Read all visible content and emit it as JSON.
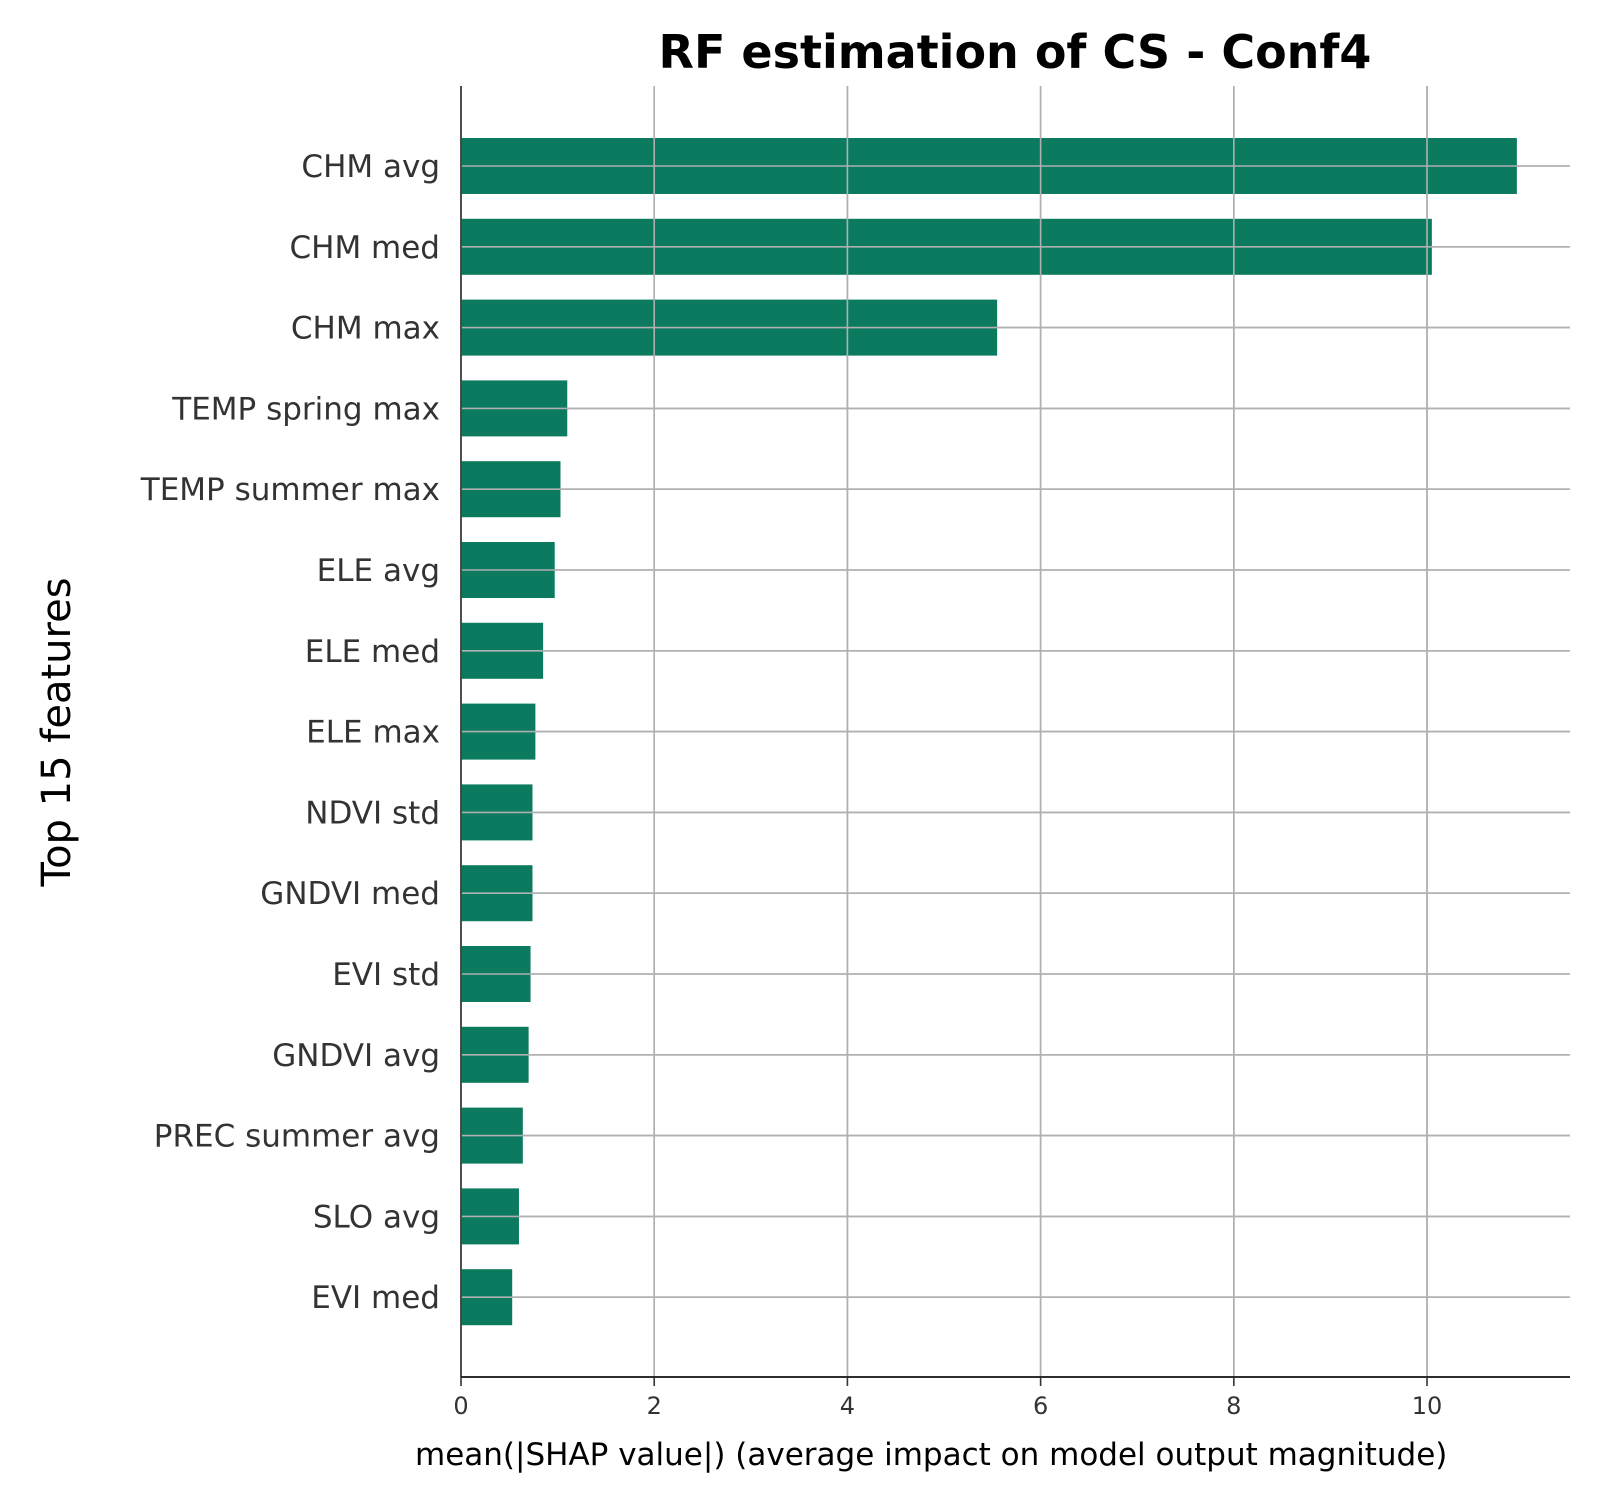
{
  "chart_data": {
    "type": "bar",
    "orientation": "horizontal",
    "title": "RF estimation of CS - Conf4",
    "xlabel": "mean(|SHAP value|) (average impact on model output magnitude)",
    "ylabel": "Top 15 features",
    "categories": [
      "CHM avg",
      "CHM med",
      "CHM max",
      "TEMP spring max",
      "TEMP summer max",
      "ELE avg",
      "ELE med",
      "ELE max",
      "NDVI std",
      "GNDVI med",
      "EVI std",
      "GNDVI avg",
      "PREC summer avg",
      "SLO avg",
      "EVI med"
    ],
    "values": [
      10.93,
      10.05,
      5.55,
      1.1,
      1.03,
      0.97,
      0.85,
      0.77,
      0.74,
      0.74,
      0.72,
      0.7,
      0.64,
      0.6,
      0.53
    ],
    "xlim": [
      0,
      11.48
    ],
    "xticks": [
      0,
      2,
      4,
      6,
      8,
      10
    ],
    "grid": true,
    "bar_color": "#0b7a5f",
    "grid_color": "#b0b0b0"
  }
}
